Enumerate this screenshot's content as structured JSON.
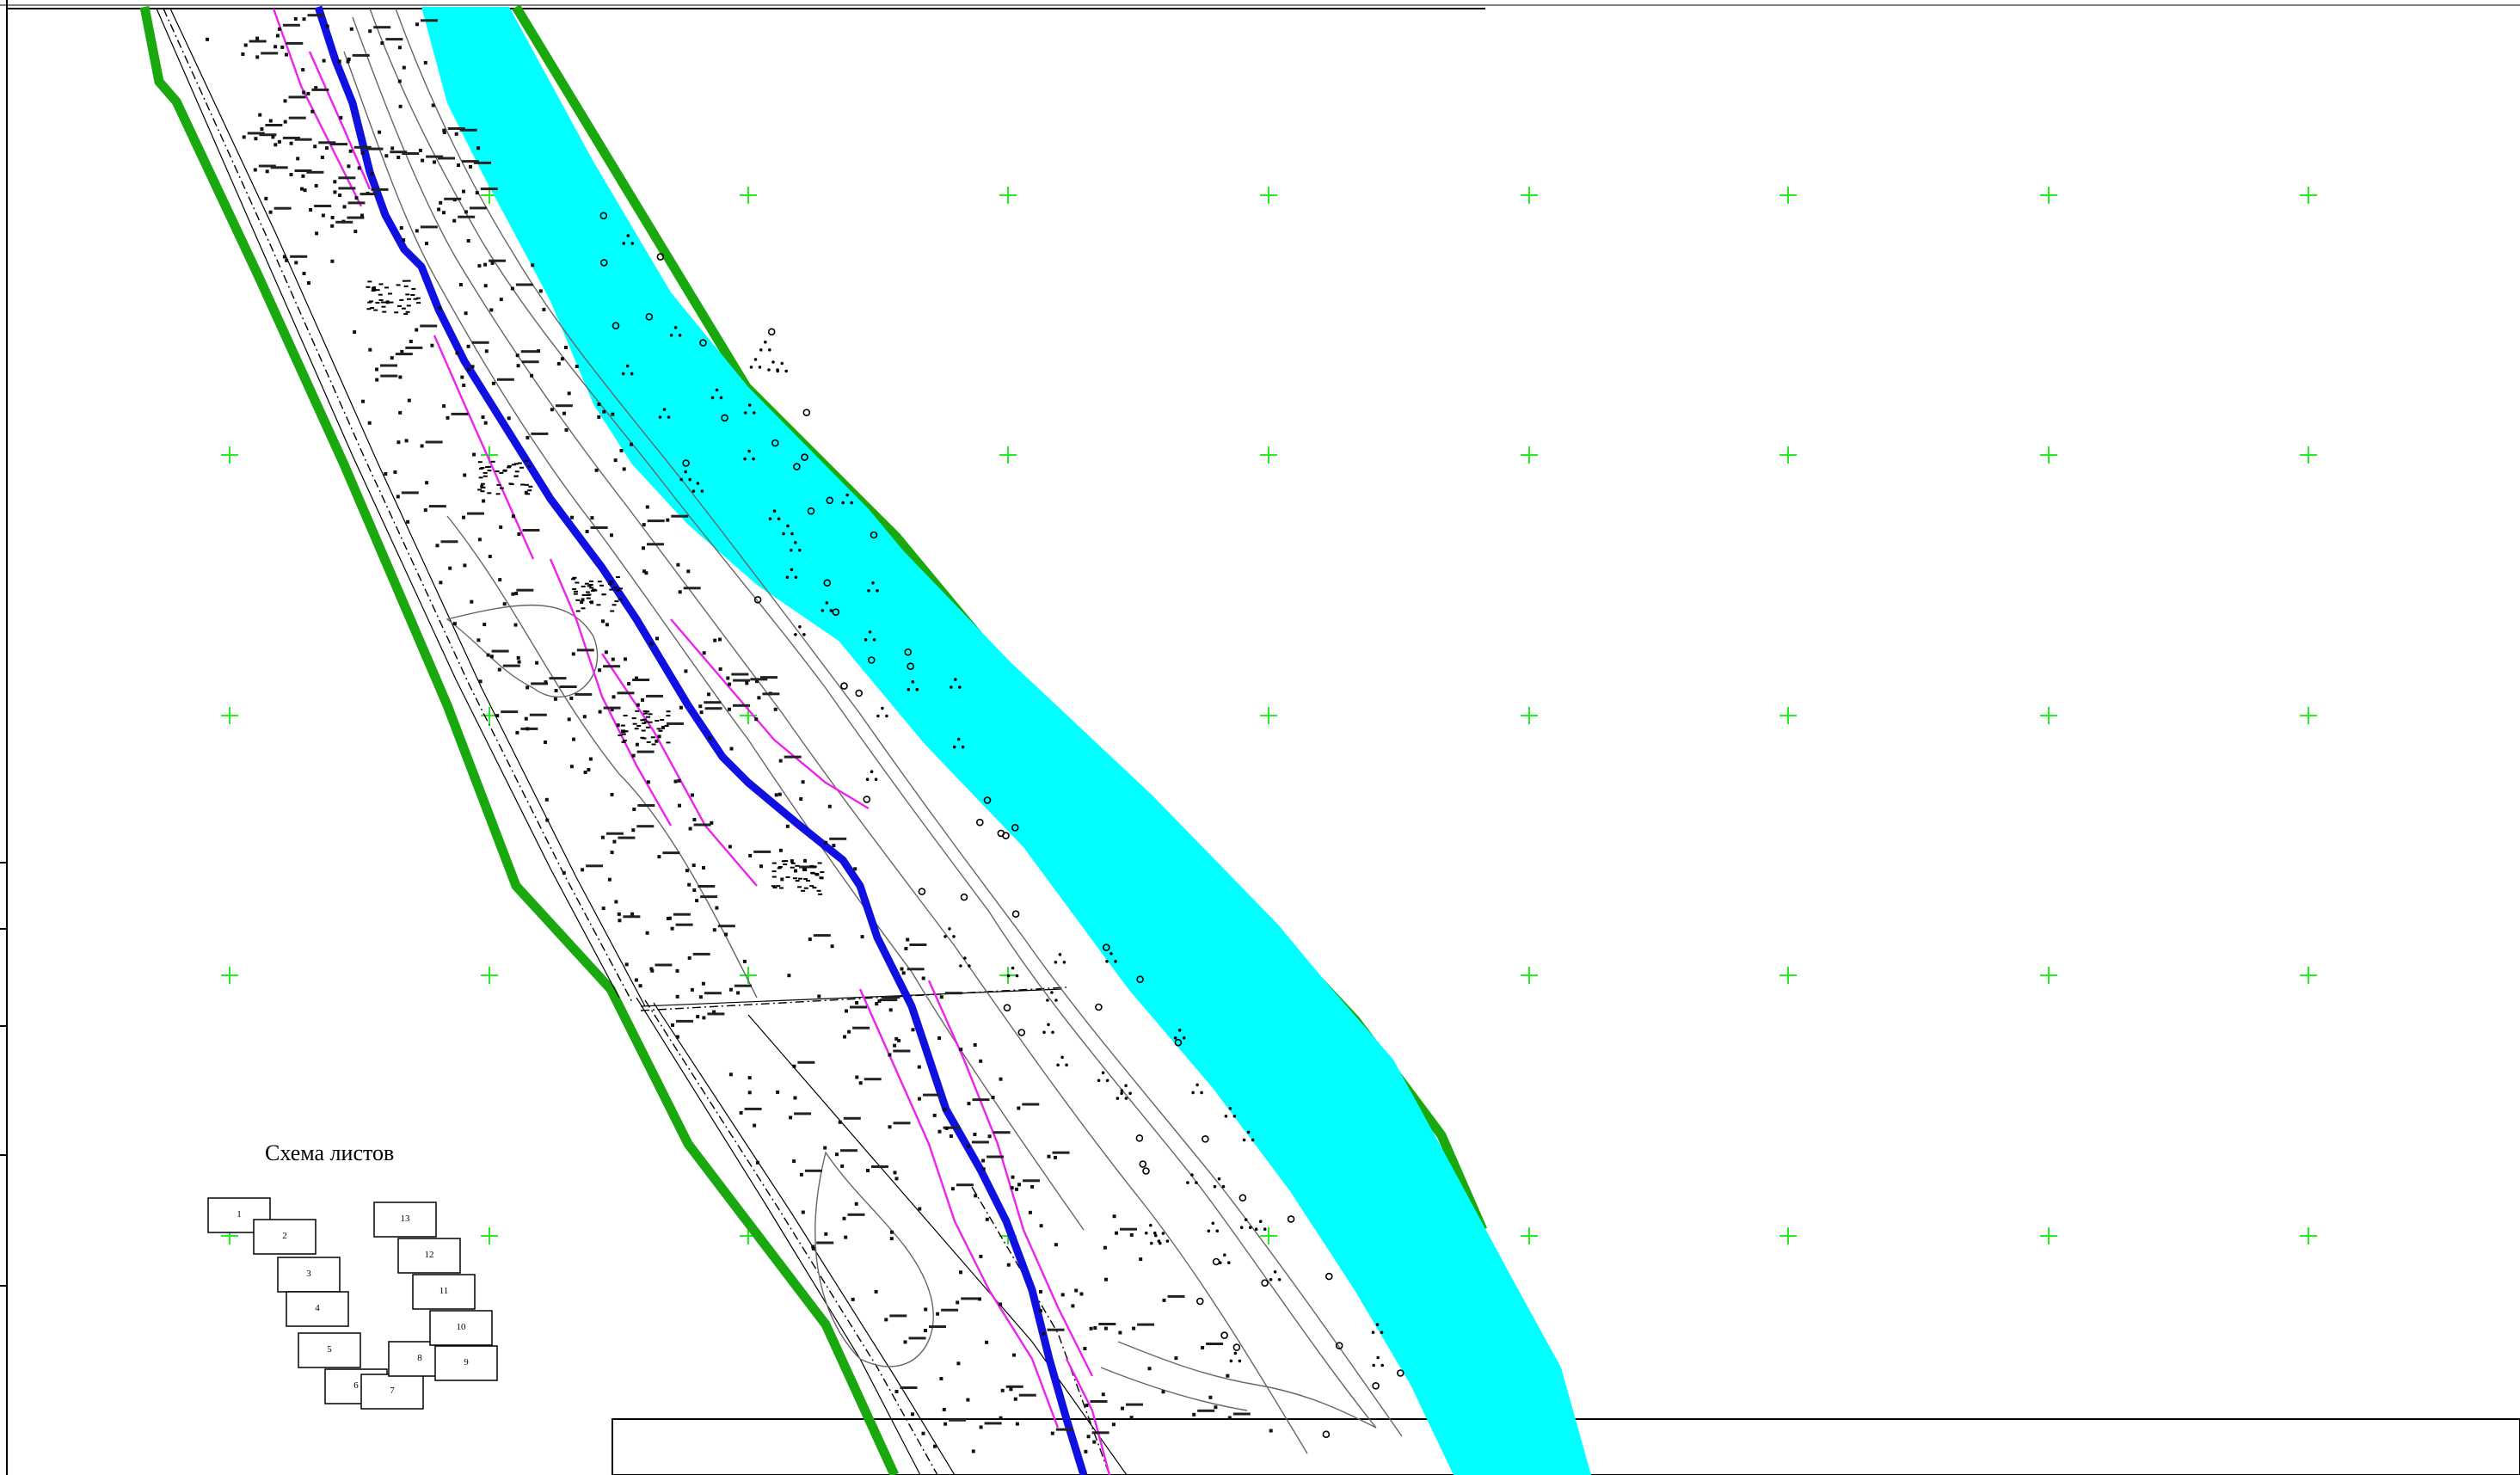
{
  "map": {
    "sheet_scheme": {
      "title": "Схема листов",
      "sheets": [
        "1",
        "2",
        "3",
        "4",
        "5",
        "6",
        "7",
        "8",
        "9",
        "10",
        "11",
        "12",
        "13"
      ]
    },
    "colors": {
      "river": "#00ffff",
      "river_bank": "#19a80d",
      "route": "#1010e0",
      "boundary_lines": "#ee22ee",
      "grid_crosses": "#22ee22",
      "contours": "#666666"
    },
    "symbols": [
      "grid-cross",
      "elevation-point",
      "tree-symbol",
      "circle-marker"
    ]
  }
}
